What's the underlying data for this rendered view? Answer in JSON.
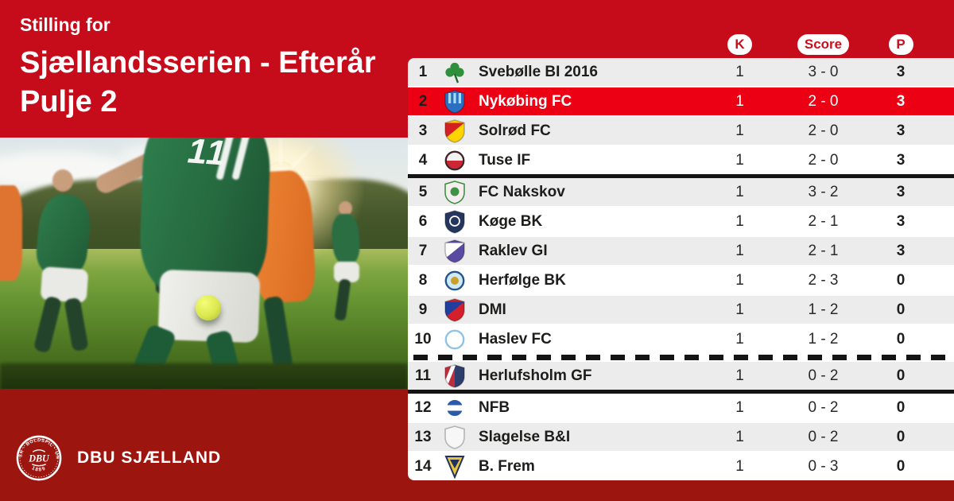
{
  "title": {
    "pretitle": "Stilling for",
    "line1": "Sjællandsserien - Efterår",
    "line2": "Pulje 2"
  },
  "photo": {
    "jersey_number": "11"
  },
  "brand": {
    "name": "DBU SJÆLLAND",
    "logo_arc_text": "DANSK · BOLDSPIL · UNION",
    "logo_center": "DBU",
    "logo_year": "1889"
  },
  "colors": {
    "bg_top": "#c60c1b",
    "bg_bottom": "#9d150f",
    "highlight": "#ec0013",
    "row_odd": "#ececec",
    "row_even": "#ffffff",
    "pill_text": "#c8101e",
    "line": "#141414"
  },
  "chart_data": {
    "type": "table",
    "title": "Stilling for Sjællandsserien - Efterår Pulje 2",
    "columns": [
      "K",
      "Score",
      "P"
    ],
    "rows": [
      {
        "pos": 1,
        "team": "Svebølle BI 2016",
        "k": 1,
        "score": "3 - 0",
        "p": 3,
        "highlight": false,
        "line_after": null,
        "crest": {
          "shape": "clover",
          "variant": "plain",
          "colors": [
            "#2f8f3c",
            "#1e6b2c"
          ]
        }
      },
      {
        "pos": 2,
        "team": "Nykøbing FC",
        "k": 1,
        "score": "2 - 0",
        "p": 3,
        "highlight": true,
        "line_after": null,
        "crest": {
          "shape": "shield",
          "variant": "stripes",
          "colors": [
            "#2a6fc0",
            "#a8dcf5"
          ]
        }
      },
      {
        "pos": 3,
        "team": "Solrød FC",
        "k": 1,
        "score": "2 - 0",
        "p": 3,
        "highlight": false,
        "line_after": null,
        "crest": {
          "shape": "shield",
          "variant": "diag",
          "colors": [
            "#ffd400",
            "#d42024"
          ]
        }
      },
      {
        "pos": 4,
        "team": "Tuse IF",
        "k": 1,
        "score": "2 - 0",
        "p": 3,
        "highlight": false,
        "line_after": "solid",
        "crest": {
          "shape": "circle",
          "variant": "half",
          "colors": [
            "#f2f2f2",
            "#cf2633",
            "#2b2b2b"
          ]
        }
      },
      {
        "pos": 5,
        "team": "FC Nakskov",
        "k": 1,
        "score": "3 - 2",
        "p": 3,
        "highlight": false,
        "line_after": null,
        "crest": {
          "shape": "shield",
          "variant": "dot",
          "colors": [
            "#f6edef",
            "#3f9244",
            "#d8a7b2"
          ]
        }
      },
      {
        "pos": 6,
        "team": "Køge BK",
        "k": 1,
        "score": "2 - 1",
        "p": 3,
        "highlight": false,
        "line_after": null,
        "crest": {
          "shape": "shield",
          "variant": "ring",
          "colors": [
            "#24355e",
            "#ffffff"
          ]
        }
      },
      {
        "pos": 7,
        "team": "Raklev GI",
        "k": 1,
        "score": "2 - 1",
        "p": 3,
        "highlight": false,
        "line_after": null,
        "crest": {
          "shape": "shield",
          "variant": "diag",
          "colors": [
            "#5b4ba0",
            "#ffffff"
          ]
        }
      },
      {
        "pos": 8,
        "team": "Herfølge BK",
        "k": 1,
        "score": "2 - 3",
        "p": 0,
        "highlight": false,
        "line_after": null,
        "crest": {
          "shape": "circle",
          "variant": "dot",
          "colors": [
            "#cfe9f6",
            "#23558c",
            "#c9a227"
          ]
        }
      },
      {
        "pos": 9,
        "team": "DMI",
        "k": 1,
        "score": "1 - 2",
        "p": 0,
        "highlight": false,
        "line_after": null,
        "crest": {
          "shape": "shield",
          "variant": "diag",
          "colors": [
            "#d3202a",
            "#1f3e9e"
          ]
        }
      },
      {
        "pos": 10,
        "team": "Haslev FC",
        "k": 1,
        "score": "1 - 2",
        "p": 0,
        "highlight": false,
        "line_after": "dashed",
        "crest": {
          "shape": "circle",
          "variant": "ring",
          "colors": [
            "#ffffff",
            "#8fc3e8"
          ]
        }
      },
      {
        "pos": 11,
        "team": "Herlufsholm GF",
        "k": 1,
        "score": "0 - 2",
        "p": 0,
        "highlight": false,
        "line_after": "solid",
        "crest": {
          "shape": "shield",
          "variant": "vsplit",
          "colors": [
            "#c22b3d",
            "#2c3e6b"
          ]
        }
      },
      {
        "pos": 12,
        "team": "NFB",
        "k": 1,
        "score": "0 - 2",
        "p": 0,
        "highlight": false,
        "line_after": null,
        "crest": {
          "shape": "circle",
          "variant": "band",
          "colors": [
            "#2b5aa8",
            "#ffffff"
          ]
        }
      },
      {
        "pos": 13,
        "team": "Slagelse B&I",
        "k": 1,
        "score": "0 - 2",
        "p": 0,
        "highlight": false,
        "line_after": null,
        "crest": {
          "shape": "shield",
          "variant": "plain",
          "colors": [
            "#f7f7f7",
            "#b5b5b5"
          ]
        }
      },
      {
        "pos": 14,
        "team": "B. Frem",
        "k": 1,
        "score": "0 - 3",
        "p": 0,
        "highlight": false,
        "line_after": null,
        "crest": {
          "shape": "pennant",
          "variant": "plain",
          "colors": [
            "#e8c33c",
            "#223061"
          ]
        }
      }
    ]
  }
}
